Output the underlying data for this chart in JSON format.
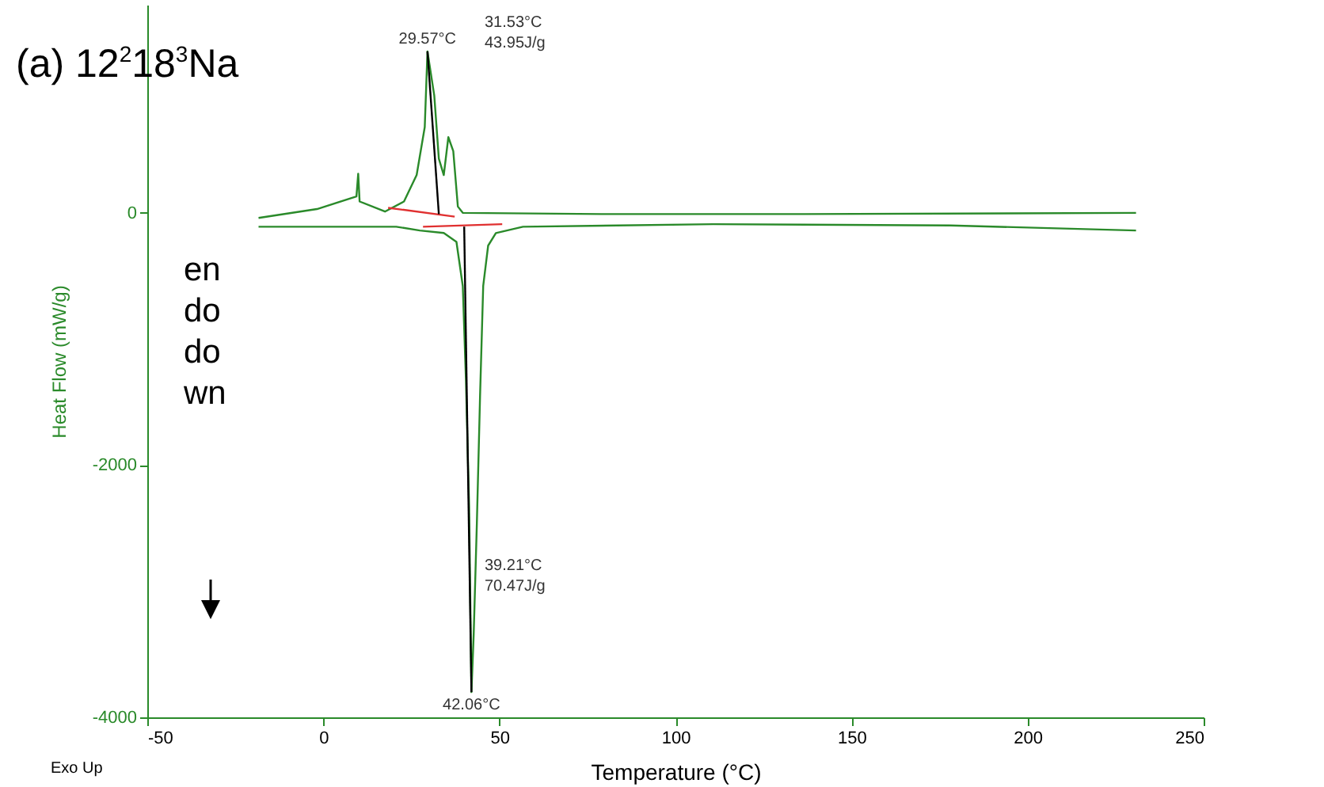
{
  "chart_data": {
    "type": "line",
    "title": "(a) 12$^{2}$18$^{3}$Na",
    "xlabel": "Temperature (°C)",
    "ylabel": "Heat Flow (mW/g)",
    "xlim": [
      -50,
      250
    ],
    "xticks": [
      -50,
      0,
      50,
      100,
      150,
      200,
      250
    ],
    "ylim": [
      -4000,
      1650
    ],
    "yticks": [
      {
        "value": -4000,
        "label": "-4000"
      },
      {
        "value": -2000,
        "label": "-2000"
      },
      0
    ],
    "grid": false,
    "line_style": "solid",
    "marker": "none",
    "series": [
      {
        "color": "#2a8a2a",
        "x": [
          -18.4,
          -1.8,
          9.4,
          9.9,
          10.3,
          17.5,
          22.9,
          26.5,
          28.8,
          29.57,
          31.5,
          32.8,
          34.2,
          35.5,
          36.9,
          38.2,
          39.6,
          79,
          133,
          230.8
        ],
        "values": [
          -40,
          30,
          130,
          310,
          90,
          10,
          90,
          300,
          680,
          1280,
          930,
          430,
          300,
          600,
          490,
          50,
          0,
          -10,
          -10,
          0
        ]
      },
      {
        "color": "#2a8a2a",
        "x": [
          -18.4,
          20.7,
          27.4,
          34.2,
          37.8,
          39.6,
          40.5,
          41.4,
          42.06,
          42.7,
          43.6,
          44.5,
          45.4,
          46.8,
          49.0,
          56.7,
          110.7,
          178,
          230.8
        ],
        "values": [
          -110,
          -110,
          -140,
          -160,
          -230,
          -580,
          -1330,
          -2330,
          -3800,
          -3340,
          -2460,
          -1460,
          -580,
          -260,
          -160,
          -110,
          -90,
          -100,
          -140
        ]
      },
      {
        "color": "#e03030",
        "x": [
          18.4,
          37.3
        ],
        "values": [
          40,
          -30
        ]
      },
      {
        "color": "#e03030",
        "x": [
          28.3,
          50.8
        ],
        "values": [
          -110,
          -90
        ]
      },
      {
        "color": "#000000",
        "x": [
          29.57,
          32.8
        ],
        "values": [
          1280,
          -10
        ]
      },
      {
        "color": "#000000",
        "x": [
          40.0,
          42.06
        ],
        "values": [
          -110,
          -3800
        ]
      }
    ],
    "annotations": [
      {
        "text": "29.57°C",
        "x": 29.57,
        "y": 1280
      },
      "31.53°C\n43.95J/g",
      "39.21°C\n70.47J/g",
      {
        "text": "42.06°C",
        "x": 42.06,
        "y": -3800
      },
      "en\ndo\ndo\nwn",
      "Exo Up"
    ]
  }
}
